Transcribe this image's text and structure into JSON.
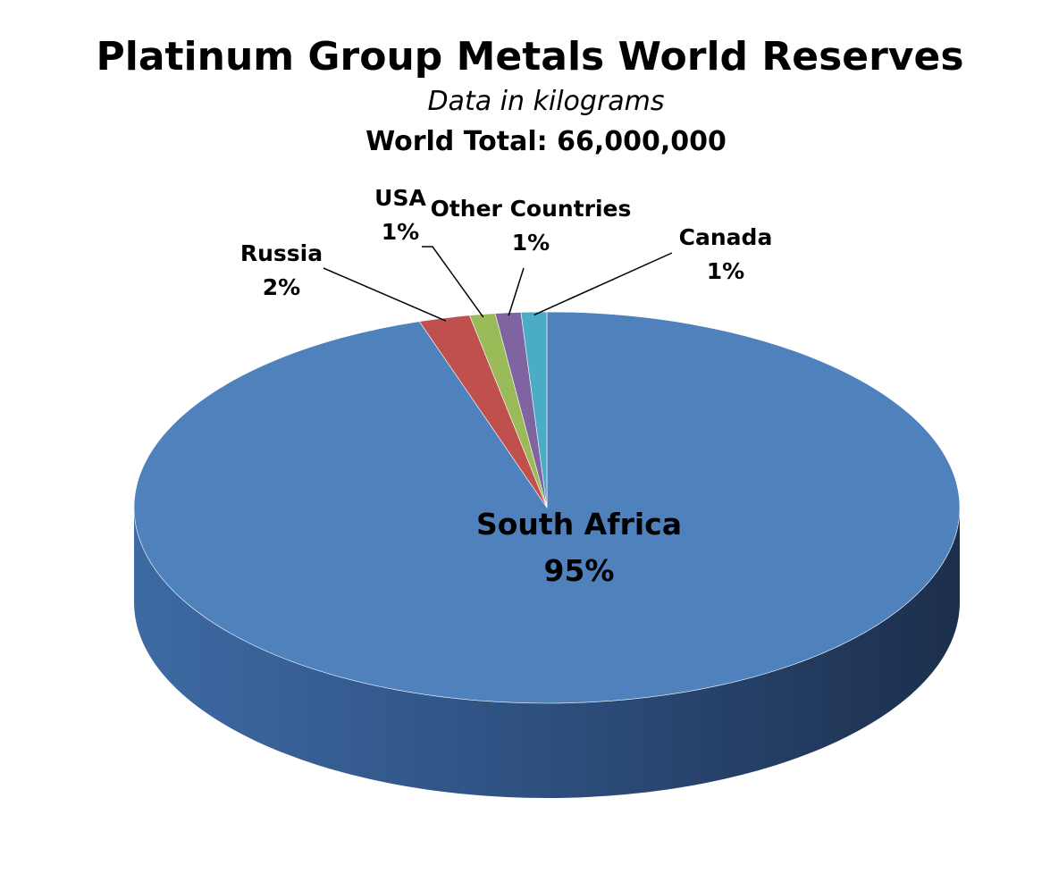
{
  "chart_data": {
    "type": "pie",
    "title": "Platinum Group Metals World Reserves",
    "subtitle": "Data in kilograms",
    "total_label": "World Total: 66,000,000",
    "slices": [
      {
        "name": "South Africa",
        "value": 95,
        "label": "95%",
        "color": "#4f81bd"
      },
      {
        "name": "Russia",
        "value": 2,
        "label": "2%",
        "color": "#c0504d"
      },
      {
        "name": "USA",
        "value": 1,
        "label": "1%",
        "color": "#9bbb59"
      },
      {
        "name": "Other Countries",
        "value": 1,
        "label": "1%",
        "color": "#8064a2"
      },
      {
        "name": "Canada",
        "value": 1,
        "label": "1%",
        "color": "#4bacc6"
      }
    ]
  }
}
